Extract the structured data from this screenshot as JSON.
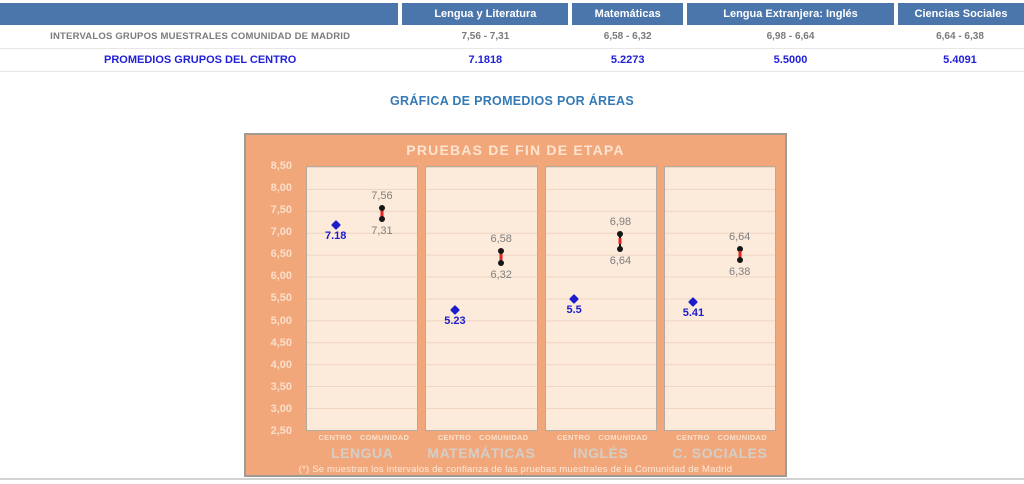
{
  "table": {
    "columns": [
      "Lengua y Literatura",
      "Matemáticas",
      "Lengua Extranjera: Inglés",
      "Ciencias Sociales"
    ],
    "rows": [
      {
        "label": "INTERVALOS GRUPOS MUESTRALES COMUNIDAD DE MADRID",
        "values": [
          "7,56 - 7,31",
          "6,58 - 6,32",
          "6,98 - 6,64",
          "6,64 - 6,38"
        ]
      },
      {
        "label": "PROMEDIOS GRUPOS DEL CENTRO",
        "values": [
          "7.1818",
          "5.2273",
          "5.5000",
          "5.4091"
        ]
      }
    ]
  },
  "section_title": "GRÁFICA DE PROMEDIOS POR ÁREAS",
  "colors": {
    "table_header_bg": "#4b76ac",
    "table_intervals_text": "#7b7b7b",
    "table_promedios_text": "#2121d8",
    "section_title_text": "#3579b5",
    "chart_bg": "#f2a77b",
    "panel_bg": "#fceadb",
    "centro_marker": "#1c1ccd",
    "interval_marker": "#161616",
    "interval_mid_marker": "#e32222",
    "interval_label_text": "#7f7f7f"
  },
  "chart_data": {
    "type": "scatter",
    "title": "PRUEBAS DE FIN DE ETAPA",
    "footnote": "(*) Se muestran los intervalos de confianza de las pruebas muestrales de la Comunidad de Madrid",
    "ylim": [
      2.5,
      8.5
    ],
    "ytick_step": 0.5,
    "yticks": [
      "8,50",
      "8,00",
      "7,50",
      "7,00",
      "6,50",
      "6,00",
      "5,50",
      "5,00",
      "4,50",
      "4,00",
      "3,50",
      "3,00",
      "2,50"
    ],
    "x_sublabels": [
      "CENTRO",
      "COMUNIDAD"
    ],
    "series_semantics": "CENTRO = promedio del centro (rombo azul); COMUNIDAD = intervalo de confianza de la Comunidad de Madrid (segmento negro con punto medio rojo)",
    "grid": true,
    "groups": [
      {
        "name": "LENGUA",
        "centro": 7.18,
        "centro_label": "7.18",
        "interval_high": 7.56,
        "interval_low": 7.31,
        "high_label": "7,56",
        "low_label": "7,31"
      },
      {
        "name": "MATEMÁTICAS",
        "centro": 5.23,
        "centro_label": "5.23",
        "interval_high": 6.58,
        "interval_low": 6.32,
        "high_label": "6,58",
        "low_label": "6,32"
      },
      {
        "name": "INGLÉS",
        "centro": 5.5,
        "centro_label": "5.5",
        "interval_high": 6.98,
        "interval_low": 6.64,
        "high_label": "6,98",
        "low_label": "6,64"
      },
      {
        "name": "C. SOCIALES",
        "centro": 5.41,
        "centro_label": "5.41",
        "interval_high": 6.64,
        "interval_low": 6.38,
        "high_label": "6,64",
        "low_label": "6,38"
      }
    ]
  }
}
